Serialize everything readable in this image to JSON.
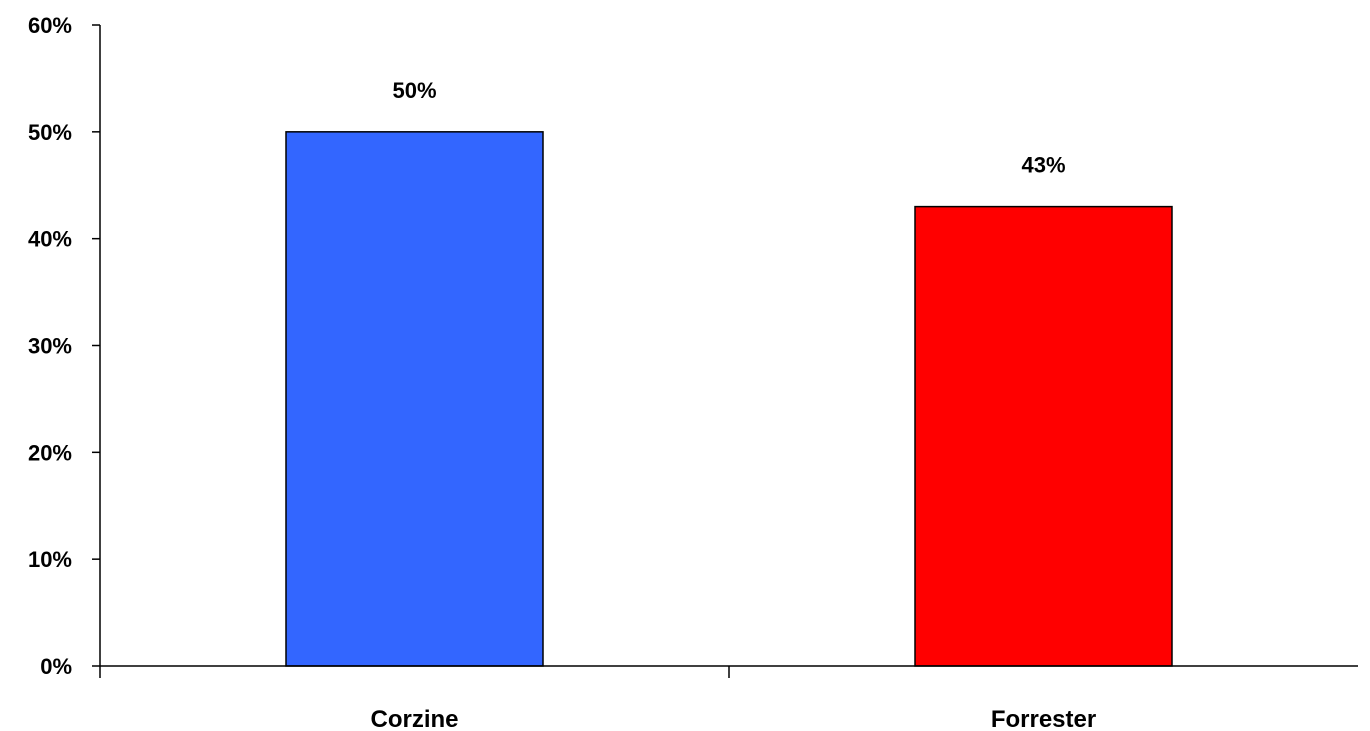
{
  "chart_data": {
    "type": "bar",
    "title": "",
    "xlabel": "",
    "ylabel": "",
    "categories": [
      "Corzine",
      "Forrester"
    ],
    "values": [
      50,
      43
    ],
    "data_labels": [
      "50%",
      "43%"
    ],
    "colors": [
      "#3366FF",
      "#FF0000"
    ],
    "ylim": [
      0,
      60
    ],
    "yticks": [
      0,
      10,
      20,
      30,
      40,
      50,
      60
    ],
    "ytick_labels": [
      "0%",
      "10%",
      "20%",
      "30%",
      "40%",
      "50%",
      "60%"
    ],
    "grid": false,
    "legend": "none"
  }
}
